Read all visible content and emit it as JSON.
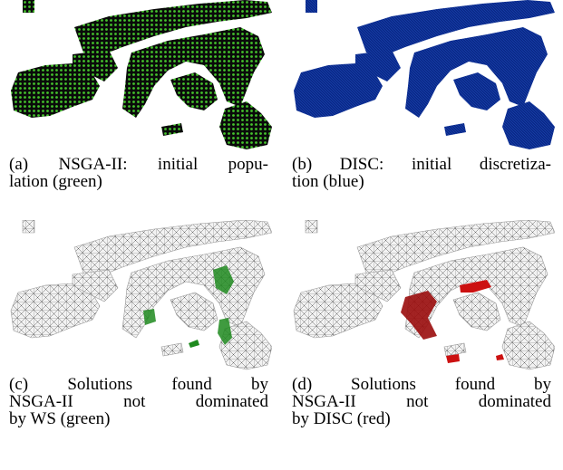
{
  "panels": [
    {
      "caption": [
        "(a) NSGA-II: initial popu-",
        "lation (green)"
      ]
    },
    {
      "caption": [
        "(b) DISC: initial discretiza-",
        "tion (blue)"
      ]
    },
    {
      "caption": [
        "(c) Solutions found by",
        "NSGA-II not dominated",
        "by WS (green)"
      ]
    },
    {
      "caption": [
        "(d) Solutions found by",
        "NSGA-II not dominated",
        "by DISC (red)"
      ]
    }
  ]
}
